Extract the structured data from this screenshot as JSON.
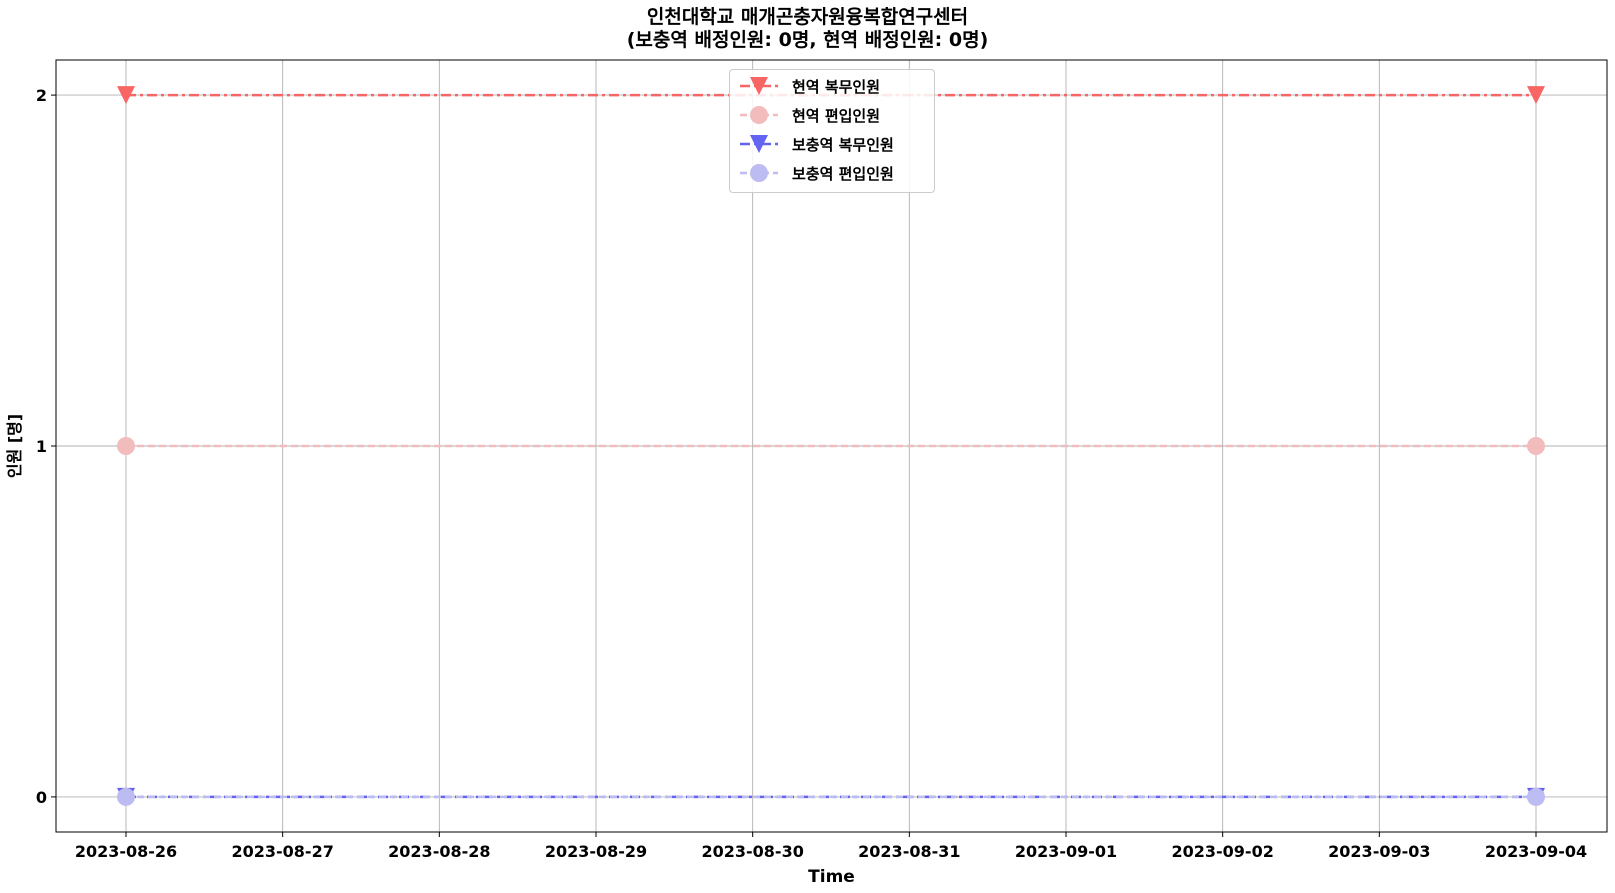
{
  "chart_data": {
    "type": "line",
    "title": "인천대학교 매개곤충자원융복합연구센터",
    "subtitle": "(보충역 배정인원: 0명, 현역 배정인원: 0명)",
    "xlabel": "Time",
    "ylabel": "인원 [명]",
    "x_ticks": [
      "2023-08-26",
      "2023-08-27",
      "2023-08-28",
      "2023-08-29",
      "2023-08-30",
      "2023-08-31",
      "2023-09-01",
      "2023-09-02",
      "2023-09-03",
      "2023-09-04"
    ],
    "y_ticks": [
      "0",
      "1",
      "2"
    ],
    "ylim": [
      -0.1,
      2.1
    ],
    "grid": true,
    "legend_position": "top-center",
    "series": [
      {
        "name": "현역 복무인원",
        "color": "#f76565",
        "marker": "triangle-down",
        "linestyle": "dash-dot",
        "x": [
          "2023-08-26",
          "2023-09-04"
        ],
        "values": [
          2,
          2
        ]
      },
      {
        "name": "현역 편입인원",
        "color": "#f2bcbc",
        "marker": "circle",
        "linestyle": "dashed",
        "x": [
          "2023-08-26",
          "2023-09-04"
        ],
        "values": [
          1,
          1
        ]
      },
      {
        "name": "보충역 복무인원",
        "color": "#6464f2",
        "marker": "triangle-down",
        "linestyle": "dash-dot",
        "x": [
          "2023-08-26",
          "2023-09-04"
        ],
        "values": [
          0,
          0
        ]
      },
      {
        "name": "보충역 편입인원",
        "color": "#bcbcf2",
        "marker": "circle",
        "linestyle": "dashed",
        "x": [
          "2023-08-26",
          "2023-09-04"
        ],
        "values": [
          0,
          0
        ]
      }
    ]
  }
}
